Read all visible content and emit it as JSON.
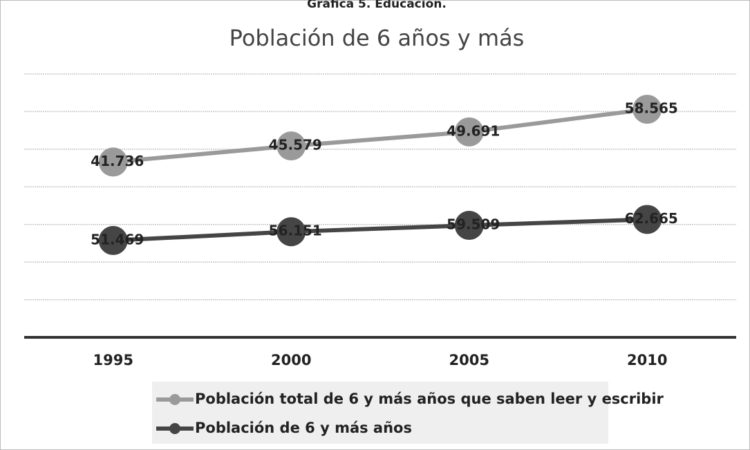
{
  "chart_data": {
    "type": "line",
    "stacked": true,
    "caption": "Gráfica 5. Educación.",
    "title": "Población de 6 años y más",
    "categories": [
      "1995",
      "2000",
      "2005",
      "2010"
    ],
    "series": [
      {
        "name": "Población total de 6 y más años que saben leer y escribir",
        "color": "#9a9a9a",
        "values": [
          41736,
          45579,
          49691,
          58565
        ],
        "value_labels": [
          "41.736",
          "45.579",
          "49.691",
          "58.565"
        ]
      },
      {
        "name": "Población de 6 y más años",
        "color": "#454545",
        "values": [
          51469,
          56151,
          59509,
          62665
        ],
        "value_labels": [
          "51.469",
          "56.151",
          "59.509",
          "62.665"
        ]
      }
    ],
    "ylim": [
      0,
      140000
    ],
    "yticks": [
      0,
      20000,
      40000,
      60000,
      80000,
      100000,
      120000,
      140000
    ],
    "grid": true
  }
}
